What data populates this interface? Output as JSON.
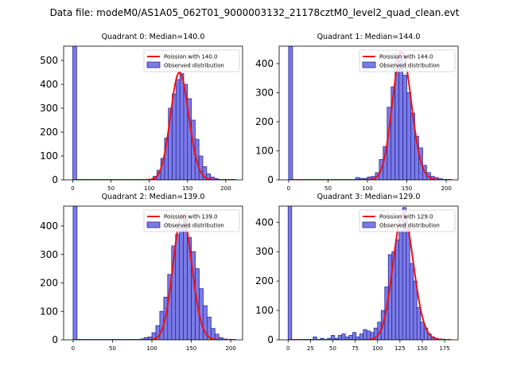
{
  "suptitle": "Data file: modeM0/AS1A05_062T01_9000003132_21178cztM0_level2_quad_clean.evt",
  "colors": {
    "bar_fill": "#7b7be8",
    "bar_edge": "#2a2a9a",
    "curve": "#ee1111"
  },
  "chart_data": [
    {
      "type": "bar",
      "title": "Quadrant 0: Median=140.0",
      "median": 140.0,
      "legend": [
        "Poission with 140.0",
        "Observed distribution"
      ],
      "legend_position": "top-right",
      "xlim": [
        -12,
        222
      ],
      "ylim": [
        0,
        560
      ],
      "xticks": [
        0,
        50,
        100,
        150,
        200
      ],
      "yticks": [
        0,
        100,
        200,
        300,
        400,
        500
      ],
      "bin_width": 5,
      "bin_starts": [
        0,
        105,
        110,
        115,
        120,
        125,
        130,
        135,
        140,
        145,
        150,
        155,
        160,
        165,
        170,
        175,
        180,
        185,
        190
      ],
      "counts": [
        560,
        15,
        40,
        90,
        175,
        300,
        360,
        420,
        445,
        400,
        340,
        250,
        170,
        100,
        55,
        25,
        12,
        5,
        2
      ],
      "poisson_lambda": 140.0,
      "poisson_peak": 450
    },
    {
      "type": "bar",
      "title": "Quadrant 1: Median=144.0",
      "median": 144.0,
      "legend": [
        "Poission with 144.0",
        "Observed distribution"
      ],
      "legend_position": "top-right",
      "xlim": [
        -12,
        215
      ],
      "ylim": [
        0,
        460
      ],
      "xticks": [
        0,
        50,
        100,
        150,
        200
      ],
      "yticks": [
        0,
        100,
        200,
        300,
        400
      ],
      "bin_width": 5,
      "bin_starts": [
        0,
        85,
        90,
        95,
        100,
        105,
        110,
        115,
        120,
        125,
        130,
        135,
        140,
        145,
        150,
        155,
        160,
        165,
        170,
        175,
        180,
        185,
        190,
        195
      ],
      "counts": [
        460,
        8,
        5,
        5,
        10,
        12,
        25,
        70,
        115,
        250,
        320,
        420,
        440,
        360,
        300,
        230,
        150,
        110,
        50,
        25,
        12,
        8,
        4,
        2
      ],
      "poisson_lambda": 144.0,
      "poisson_peak": 440
    },
    {
      "type": "bar",
      "title": "Quadrant 2: Median=139.0",
      "median": 139.0,
      "legend": [
        "Poission with 139.0",
        "Observed distribution"
      ],
      "legend_position": "top-right",
      "xlim": [
        -12,
        215
      ],
      "ylim": [
        0,
        470
      ],
      "xticks": [
        0,
        50,
        100,
        150,
        200
      ],
      "yticks": [
        0,
        100,
        200,
        300,
        400
      ],
      "bin_width": 5,
      "bin_starts": [
        0,
        85,
        90,
        95,
        100,
        105,
        110,
        115,
        120,
        125,
        130,
        135,
        140,
        145,
        150,
        155,
        160,
        165,
        170,
        175,
        180,
        185,
        190
      ],
      "counts": [
        470,
        3,
        8,
        10,
        25,
        50,
        100,
        150,
        230,
        330,
        370,
        400,
        440,
        360,
        310,
        250,
        180,
        120,
        80,
        40,
        20,
        8,
        3
      ],
      "poisson_lambda": 139.0,
      "poisson_peak": 440
    },
    {
      "type": "bar",
      "title": "Quadrant 3: Median=129.0",
      "median": 129.0,
      "legend": [
        "Poission with 129.0",
        "Observed distribution"
      ],
      "legend_position": "top-right",
      "xlim": [
        -10,
        190
      ],
      "ylim": [
        0,
        455
      ],
      "xticks": [
        0,
        25,
        50,
        75,
        100,
        125,
        150,
        175
      ],
      "yticks": [
        0,
        100,
        200,
        300,
        400
      ],
      "bin_width": 4,
      "bin_starts": [
        0,
        28,
        36,
        44,
        48,
        52,
        56,
        60,
        64,
        68,
        72,
        76,
        80,
        84,
        88,
        92,
        96,
        100,
        104,
        108,
        112,
        116,
        120,
        124,
        128,
        132,
        136,
        140,
        144,
        148,
        152,
        156,
        160,
        164,
        168,
        172
      ],
      "counts": [
        455,
        10,
        5,
        5,
        15,
        5,
        15,
        20,
        10,
        15,
        25,
        10,
        20,
        35,
        30,
        25,
        40,
        60,
        100,
        180,
        290,
        300,
        340,
        370,
        450,
        380,
        260,
        200,
        110,
        60,
        40,
        20,
        10,
        5,
        3,
        2
      ],
      "poisson_lambda": 129.0,
      "poisson_peak": 430
    }
  ]
}
